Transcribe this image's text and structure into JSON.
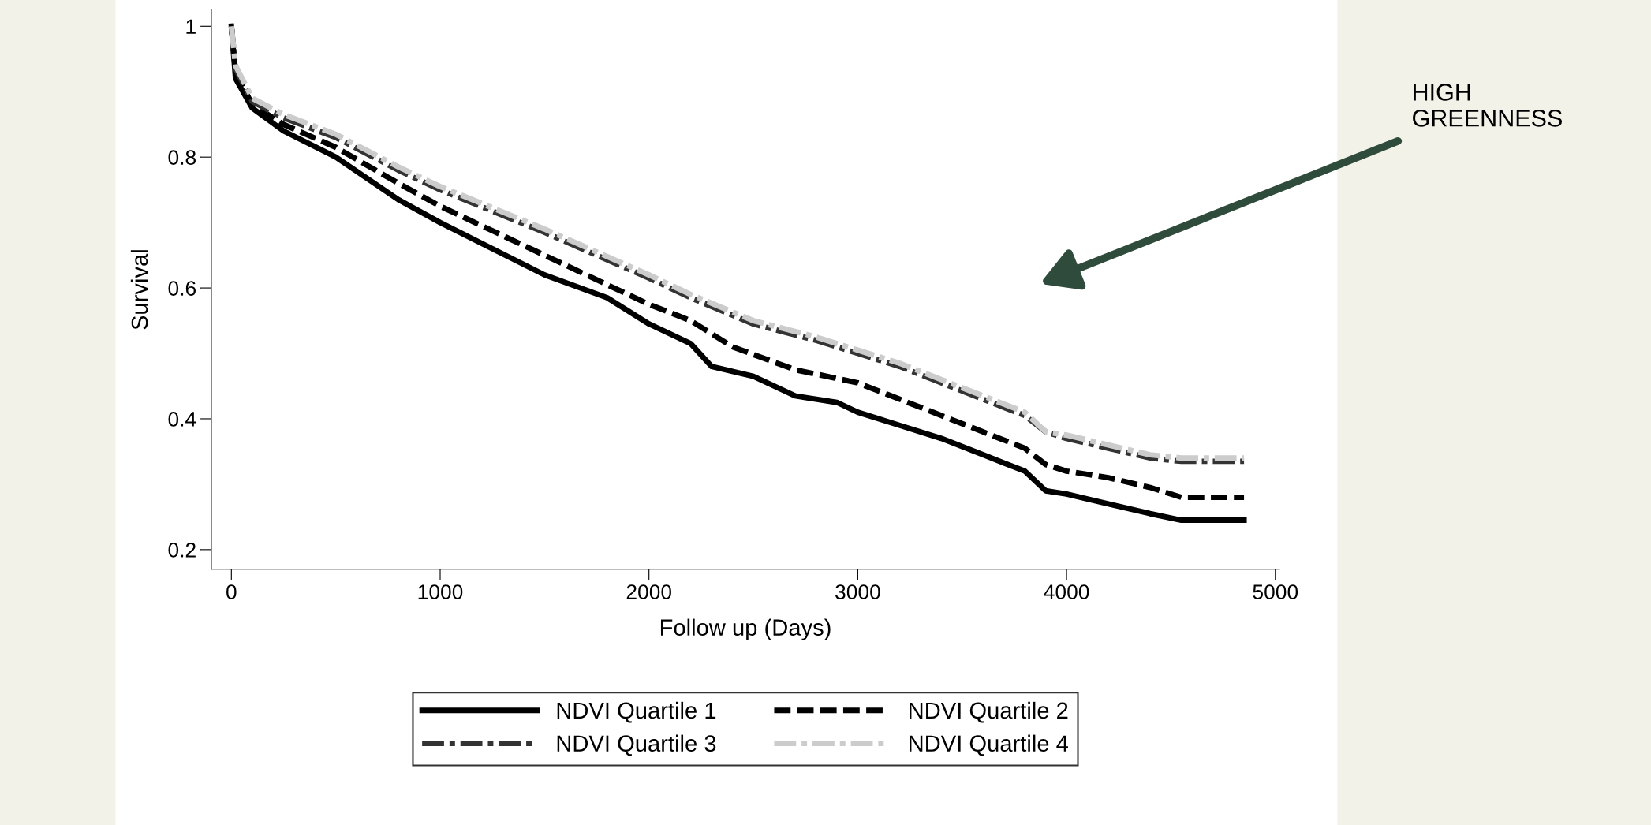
{
  "chart_data": {
    "type": "line",
    "xlabel": "Follow up (Days)",
    "ylabel": "Survival",
    "xlim": [
      -96,
      5020
    ],
    "ylim": [
      0.17,
      1.025
    ],
    "xticks": [
      0,
      1000,
      2000,
      3000,
      4000,
      5000
    ],
    "yticks": [
      0.2,
      0.4,
      0.6,
      0.8,
      1
    ],
    "grid": false,
    "legend": "bottom",
    "annotations": [
      "HIGH\nGREENNESS"
    ],
    "series": [
      {
        "name": "NDVI Quartile 1",
        "color": "#000000",
        "line_style": "solid",
        "x": [
          0,
          20,
          100,
          250,
          500,
          800,
          1000,
          1500,
          1800,
          2000,
          2200,
          2300,
          2500,
          2700,
          2900,
          3000,
          3200,
          3400,
          3600,
          3800,
          3900,
          4000,
          4200,
          4400,
          4550,
          4850
        ],
        "values": [
          1.0,
          0.92,
          0.875,
          0.84,
          0.8,
          0.735,
          0.7,
          0.62,
          0.585,
          0.545,
          0.515,
          0.48,
          0.465,
          0.435,
          0.425,
          0.41,
          0.39,
          0.37,
          0.345,
          0.32,
          0.29,
          0.285,
          0.27,
          0.255,
          0.245,
          0.245
        ]
      },
      {
        "name": "NDVI Quartile 2",
        "color": "#000000",
        "line_style": "dashed",
        "x": [
          0,
          20,
          100,
          250,
          500,
          800,
          1000,
          1500,
          2000,
          2200,
          2400,
          2700,
          3000,
          3200,
          3400,
          3600,
          3800,
          3900,
          4000,
          4200,
          4400,
          4550,
          4850
        ],
        "values": [
          1.0,
          0.93,
          0.88,
          0.85,
          0.815,
          0.76,
          0.725,
          0.65,
          0.575,
          0.55,
          0.51,
          0.475,
          0.455,
          0.43,
          0.405,
          0.38,
          0.355,
          0.33,
          0.32,
          0.31,
          0.295,
          0.28,
          0.28
        ]
      },
      {
        "name": "NDVI Quartile 3",
        "color": "#333333",
        "line_style": "dashdot",
        "x": [
          0,
          20,
          100,
          250,
          500,
          800,
          1000,
          1500,
          2000,
          2200,
          2500,
          2800,
          3000,
          3200,
          3400,
          3600,
          3800,
          3900,
          4000,
          4200,
          4400,
          4550,
          4850
        ],
        "values": [
          1.0,
          0.935,
          0.885,
          0.86,
          0.83,
          0.78,
          0.75,
          0.685,
          0.615,
          0.585,
          0.545,
          0.52,
          0.5,
          0.48,
          0.455,
          0.43,
          0.405,
          0.38,
          0.37,
          0.355,
          0.34,
          0.335,
          0.335
        ]
      },
      {
        "name": "NDVI Quartile 4",
        "color": "#cccccc",
        "line_style": "dashdot",
        "x": [
          0,
          20,
          100,
          250,
          500,
          800,
          1000,
          1500,
          2000,
          2200,
          2500,
          2800,
          3000,
          3200,
          3400,
          3600,
          3800,
          3900,
          4000,
          4200,
          4400,
          4550,
          4850
        ],
        "values": [
          1.0,
          0.94,
          0.89,
          0.865,
          0.835,
          0.785,
          0.755,
          0.69,
          0.62,
          0.59,
          0.55,
          0.525,
          0.505,
          0.485,
          0.46,
          0.435,
          0.41,
          0.38,
          0.375,
          0.36,
          0.345,
          0.34,
          0.34
        ]
      }
    ]
  }
}
